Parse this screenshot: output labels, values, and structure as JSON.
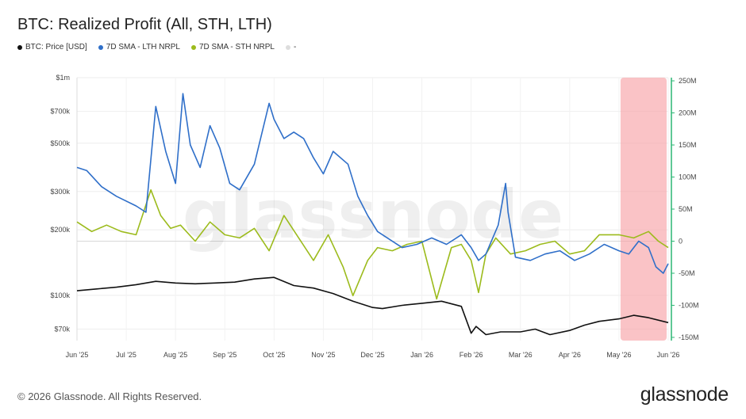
{
  "title": "BTC: Realized Profit (All, STH, LTH)",
  "legend": [
    {
      "label": "BTC: Price [USD]",
      "color": "#111111"
    },
    {
      "label": "7D SMA - LTH NRPL",
      "color": "#2f6fc9"
    },
    {
      "label": "7D SMA - STH NRPL",
      "color": "#9cbb1c"
    },
    {
      "label": "-",
      "color": "#dddddd"
    }
  ],
  "footer": "© 2026 Glassnode. All Rights Reserved.",
  "brand": "glassnode",
  "watermark": "glassnode",
  "colors": {
    "price": "#111111",
    "lth": "#2f6fc9",
    "sth": "#9cbb1c",
    "highlight": "#f7a3a8",
    "right_axis": "#2bb673"
  },
  "chart_data": {
    "type": "line",
    "title": "BTC: Realized Profit (All, STH, LTH)",
    "x_ticks": [
      "Jun '25",
      "Jul '25",
      "Aug '25",
      "Sep '25",
      "Oct '25",
      "Nov '25",
      "Dec '25",
      "Jan '26",
      "Feb '26",
      "Mar '26",
      "Apr '26",
      "May '26",
      "Jun '26"
    ],
    "y_left": {
      "scale": "log",
      "ticks": [
        "$1m",
        "$700k",
        "$500k",
        "$300k",
        "$200k",
        "$100k",
        "$70k"
      ],
      "tick_values": [
        1000000,
        700000,
        500000,
        300000,
        200000,
        100000,
        70000
      ]
    },
    "y_right": {
      "ticks": [
        "250M",
        "200M",
        "150M",
        "100M",
        "50M",
        "0",
        "-50M",
        "-100M",
        "-150M"
      ],
      "tick_values": [
        250,
        200,
        150,
        100,
        50,
        0,
        -50,
        -100,
        -150
      ],
      "unit": "M"
    },
    "highlight": {
      "start": 11.0,
      "end": 12.0
    },
    "series": [
      {
        "name": "BTC: Price [USD]",
        "axis": "left",
        "x": [
          0,
          0.4,
          0.8,
          1.2,
          1.6,
          2.0,
          2.4,
          2.8,
          3.2,
          3.6,
          4.0,
          4.4,
          4.8,
          5.2,
          5.6,
          6.0,
          6.2,
          6.6,
          7.0,
          7.4,
          7.8,
          8.0,
          8.1,
          8.3,
          8.6,
          9.0,
          9.3,
          9.6,
          10.0,
          10.3,
          10.6,
          11.0,
          11.3,
          11.6,
          12.0
        ],
        "y": [
          105000,
          107000,
          109000,
          112000,
          116000,
          114000,
          113000,
          114000,
          115000,
          119000,
          121000,
          111000,
          108000,
          102000,
          94000,
          88000,
          87000,
          90000,
          92000,
          94000,
          89000,
          67000,
          72000,
          66000,
          68000,
          68000,
          70000,
          66000,
          69000,
          73000,
          76000,
          78000,
          81000,
          79000,
          75000
        ]
      },
      {
        "name": "7D SMA - LTH NRPL",
        "axis": "right",
        "x": [
          0,
          0.2,
          0.5,
          0.8,
          1.2,
          1.4,
          1.6,
          1.8,
          2.0,
          2.15,
          2.3,
          2.5,
          2.7,
          2.9,
          3.1,
          3.3,
          3.6,
          3.9,
          4.0,
          4.2,
          4.4,
          4.6,
          4.8,
          5.0,
          5.2,
          5.5,
          5.7,
          5.9,
          6.1,
          6.3,
          6.6,
          6.9,
          7.2,
          7.5,
          7.8,
          8.0,
          8.15,
          8.3,
          8.55,
          8.7,
          8.75,
          8.9,
          9.2,
          9.5,
          9.8,
          10.1,
          10.4,
          10.7,
          11.0,
          11.2,
          11.4,
          11.6,
          11.75,
          11.9,
          12.0
        ],
        "y": [
          115,
          110,
          85,
          70,
          55,
          45,
          210,
          140,
          90,
          230,
          150,
          115,
          180,
          145,
          90,
          80,
          120,
          215,
          190,
          160,
          170,
          160,
          130,
          105,
          140,
          120,
          70,
          40,
          15,
          5,
          -10,
          -5,
          5,
          -5,
          10,
          -10,
          -30,
          -20,
          25,
          90,
          45,
          -25,
          -30,
          -20,
          -15,
          -30,
          -20,
          -5,
          -15,
          -20,
          0,
          -10,
          -40,
          -50,
          -35
        ]
      },
      {
        "name": "7D SMA - STH NRPL",
        "axis": "right",
        "x": [
          0,
          0.3,
          0.6,
          0.9,
          1.2,
          1.5,
          1.7,
          1.9,
          2.1,
          2.4,
          2.7,
          3.0,
          3.3,
          3.6,
          3.9,
          4.2,
          4.5,
          4.8,
          5.1,
          5.4,
          5.6,
          5.9,
          6.1,
          6.4,
          6.7,
          7.0,
          7.3,
          7.6,
          7.8,
          8.0,
          8.15,
          8.3,
          8.5,
          8.8,
          9.1,
          9.4,
          9.7,
          10.0,
          10.3,
          10.6,
          11.0,
          11.3,
          11.6,
          11.8,
          12.0
        ],
        "y": [
          30,
          15,
          25,
          15,
          10,
          80,
          40,
          20,
          25,
          0,
          30,
          10,
          5,
          20,
          -15,
          40,
          5,
          -30,
          10,
          -40,
          -85,
          -30,
          -10,
          -15,
          -5,
          0,
          -90,
          -10,
          -5,
          -30,
          -80,
          -20,
          5,
          -20,
          -15,
          -5,
          0,
          -20,
          -15,
          10,
          10,
          5,
          15,
          0,
          -10
        ]
      }
    ]
  }
}
